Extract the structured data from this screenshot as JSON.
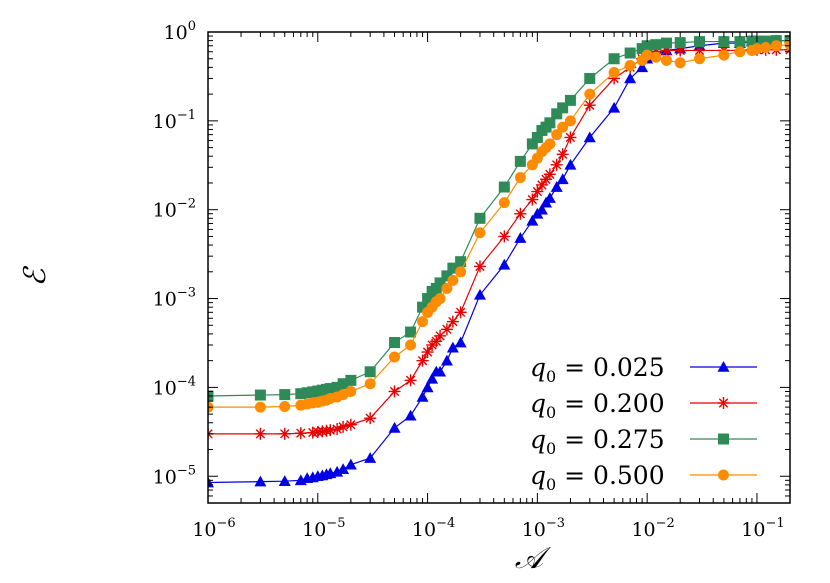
{
  "chart_data": {
    "type": "scatter",
    "title": "",
    "xlabel": "𝒜",
    "ylabel": "ℰ",
    "x_scale": "log",
    "y_scale": "log",
    "xlim": [
      1e-06,
      0.2
    ],
    "ylim": [
      5e-06,
      1
    ],
    "grid": false,
    "legend_position": "bottom-right",
    "x_ticks": [
      {
        "base": "10",
        "exp": "−6",
        "value": 1e-06
      },
      {
        "base": "10",
        "exp": "−5",
        "value": 1e-05
      },
      {
        "base": "10",
        "exp": "−4",
        "value": 0.0001
      },
      {
        "base": "10",
        "exp": "−3",
        "value": 0.001
      },
      {
        "base": "10",
        "exp": "−2",
        "value": 0.01
      },
      {
        "base": "10",
        "exp": "−1",
        "value": 0.1
      }
    ],
    "y_ticks": [
      {
        "base": "10",
        "exp": "0",
        "value": 1
      },
      {
        "base": "10",
        "exp": "−1",
        "value": 0.1
      },
      {
        "base": "10",
        "exp": "−2",
        "value": 0.01
      },
      {
        "base": "10",
        "exp": "−3",
        "value": 0.001
      },
      {
        "base": "10",
        "exp": "−4",
        "value": 0.0001
      },
      {
        "base": "10",
        "exp": "−5",
        "value": 1e-05
      }
    ],
    "series": [
      {
        "name_var": "q",
        "name_sub": "0",
        "name_value": " = 0.025",
        "color": "#0000e6",
        "marker": "triangle",
        "points": [
          [
            1e-06,
            8.5e-06
          ],
          [
            3e-06,
            8.7e-06
          ],
          [
            5e-06,
            8.8e-06
          ],
          [
            7e-06,
            9e-06
          ],
          [
            8e-06,
            9.5e-06
          ],
          [
            9e-06,
            9.7e-06
          ],
          [
            1e-05,
            1e-05
          ],
          [
            1.1e-05,
            1.02e-05
          ],
          [
            1.2e-05,
            1.05e-05
          ],
          [
            1.3e-05,
            1.08e-05
          ],
          [
            1.5e-05,
            1.12e-05
          ],
          [
            1.7e-05,
            1.2e-05
          ],
          [
            2e-05,
            1.35e-05
          ],
          [
            3e-05,
            1.6e-05
          ],
          [
            5e-05,
            3.5e-05
          ],
          [
            7e-05,
            4.8e-05
          ],
          [
            9e-05,
            7.8e-05
          ],
          [
            0.0001,
            0.0001
          ],
          [
            0.00011,
            0.000125
          ],
          [
            0.00012,
            0.00015
          ],
          [
            0.00013,
            0.00015
          ],
          [
            0.00015,
            0.0002
          ],
          [
            0.00017,
            0.00028
          ],
          [
            0.0002,
            0.00032
          ],
          [
            0.0003,
            0.0011
          ],
          [
            0.0005,
            0.0024
          ],
          [
            0.0007,
            0.0048
          ],
          [
            0.0009,
            0.0075
          ],
          [
            0.001,
            0.009
          ],
          [
            0.0011,
            0.01
          ],
          [
            0.0012,
            0.012
          ],
          [
            0.0013,
            0.0135
          ],
          [
            0.0015,
            0.018
          ],
          [
            0.0017,
            0.022
          ],
          [
            0.002,
            0.032
          ],
          [
            0.003,
            0.065
          ],
          [
            0.005,
            0.14
          ],
          [
            0.007,
            0.3
          ],
          [
            0.009,
            0.4
          ],
          [
            0.01,
            0.5
          ],
          [
            0.012,
            0.55
          ],
          [
            0.015,
            0.62
          ],
          [
            0.02,
            0.65
          ],
          [
            0.03,
            0.7
          ],
          [
            0.05,
            0.75
          ],
          [
            0.07,
            0.75
          ],
          [
            0.09,
            0.78
          ],
          [
            0.1,
            0.78
          ],
          [
            0.12,
            0.78
          ],
          [
            0.15,
            0.8
          ],
          [
            0.2,
            0.8
          ]
        ]
      },
      {
        "name_var": "q",
        "name_sub": "0",
        "name_value": " = 0.200",
        "color": "#e60000",
        "marker": "asterisk",
        "points": [
          [
            1e-06,
            3e-05
          ],
          [
            3e-06,
            3e-05
          ],
          [
            5e-06,
            3e-05
          ],
          [
            7e-06,
            3.05e-05
          ],
          [
            9e-06,
            3.1e-05
          ],
          [
            1e-05,
            3.15e-05
          ],
          [
            1.1e-05,
            3.2e-05
          ],
          [
            1.2e-05,
            3.25e-05
          ],
          [
            1.3e-05,
            3.3e-05
          ],
          [
            1.5e-05,
            3.4e-05
          ],
          [
            1.7e-05,
            3.6e-05
          ],
          [
            2e-05,
            3.8e-05
          ],
          [
            3e-05,
            4.5e-05
          ],
          [
            5e-05,
            9e-05
          ],
          [
            7e-05,
            0.00012
          ],
          [
            9e-05,
            0.0002
          ],
          [
            0.0001,
            0.00025
          ],
          [
            0.00011,
            0.0003
          ],
          [
            0.00012,
            0.00033
          ],
          [
            0.00013,
            0.00038
          ],
          [
            0.00015,
            0.00045
          ],
          [
            0.00017,
            0.00055
          ],
          [
            0.0002,
            0.0007
          ],
          [
            0.0003,
            0.0023
          ],
          [
            0.0005,
            0.005
          ],
          [
            0.0007,
            0.009
          ],
          [
            0.0009,
            0.013
          ],
          [
            0.001,
            0.016
          ],
          [
            0.0011,
            0.019
          ],
          [
            0.0012,
            0.022
          ],
          [
            0.0013,
            0.025
          ],
          [
            0.0015,
            0.032
          ],
          [
            0.0017,
            0.042
          ],
          [
            0.002,
            0.065
          ],
          [
            0.003,
            0.15
          ],
          [
            0.005,
            0.3
          ],
          [
            0.007,
            0.4
          ],
          [
            0.009,
            0.5
          ],
          [
            0.01,
            0.55
          ],
          [
            0.012,
            0.6
          ],
          [
            0.015,
            0.62
          ],
          [
            0.02,
            0.62
          ],
          [
            0.03,
            0.62
          ],
          [
            0.05,
            0.62
          ],
          [
            0.07,
            0.62
          ],
          [
            0.09,
            0.63
          ],
          [
            0.1,
            0.63
          ],
          [
            0.12,
            0.63
          ],
          [
            0.15,
            0.63
          ],
          [
            0.2,
            0.63
          ]
        ]
      },
      {
        "name_var": "q",
        "name_sub": "0",
        "name_value": " = 0.275",
        "color": "#2e8b57",
        "marker": "square",
        "points": [
          [
            1e-06,
            8e-05
          ],
          [
            3e-06,
            8.2e-05
          ],
          [
            5e-06,
            8.3e-05
          ],
          [
            7e-06,
            8.5e-05
          ],
          [
            8e-06,
            8.7e-05
          ],
          [
            9e-06,
            8.9e-05
          ],
          [
            1e-05,
            9.1e-05
          ],
          [
            1.1e-05,
            9.3e-05
          ],
          [
            1.2e-05,
            9.5e-05
          ],
          [
            1.3e-05,
            9.7e-05
          ],
          [
            1.5e-05,
            0.0001
          ],
          [
            1.7e-05,
            0.00011
          ],
          [
            2e-05,
            0.00012
          ],
          [
            3e-05,
            0.00015
          ],
          [
            5e-05,
            0.00032
          ],
          [
            7e-05,
            0.00042
          ],
          [
            9e-05,
            0.0008
          ],
          [
            0.0001,
            0.001
          ],
          [
            0.00011,
            0.0012
          ],
          [
            0.00012,
            0.0013
          ],
          [
            0.00013,
            0.0015
          ],
          [
            0.00015,
            0.0018
          ],
          [
            0.00017,
            0.0022
          ],
          [
            0.0002,
            0.0026
          ],
          [
            0.0003,
            0.008
          ],
          [
            0.0005,
            0.018
          ],
          [
            0.0007,
            0.035
          ],
          [
            0.0009,
            0.055
          ],
          [
            0.001,
            0.065
          ],
          [
            0.0011,
            0.078
          ],
          [
            0.0012,
            0.085
          ],
          [
            0.0013,
            0.095
          ],
          [
            0.0015,
            0.12
          ],
          [
            0.0017,
            0.14
          ],
          [
            0.002,
            0.17
          ],
          [
            0.003,
            0.3
          ],
          [
            0.005,
            0.5
          ],
          [
            0.007,
            0.58
          ],
          [
            0.009,
            0.65
          ],
          [
            0.01,
            0.7
          ],
          [
            0.012,
            0.72
          ],
          [
            0.015,
            0.75
          ],
          [
            0.02,
            0.76
          ],
          [
            0.03,
            0.78
          ],
          [
            0.05,
            0.78
          ],
          [
            0.07,
            0.78
          ],
          [
            0.09,
            0.79
          ],
          [
            0.1,
            0.79
          ],
          [
            0.12,
            0.79
          ],
          [
            0.15,
            0.8
          ],
          [
            0.2,
            0.8
          ]
        ]
      },
      {
        "name_var": "q",
        "name_sub": "0",
        "name_value": " = 0.500",
        "color": "#ff8c00",
        "marker": "circle",
        "points": [
          [
            1e-06,
            6e-05
          ],
          [
            3e-06,
            6e-05
          ],
          [
            5e-06,
            6.1e-05
          ],
          [
            7e-06,
            6.3e-05
          ],
          [
            8e-06,
            6.5e-05
          ],
          [
            9e-06,
            6.7e-05
          ],
          [
            1e-05,
            6.8e-05
          ],
          [
            1.1e-05,
            7e-05
          ],
          [
            1.2e-05,
            7.2e-05
          ],
          [
            1.3e-05,
            7.5e-05
          ],
          [
            1.5e-05,
            7.8e-05
          ],
          [
            1.7e-05,
            8.3e-05
          ],
          [
            2e-05,
            9e-05
          ],
          [
            3e-05,
            0.00011
          ],
          [
            5e-05,
            0.00022
          ],
          [
            7e-05,
            0.0003
          ],
          [
            9e-05,
            0.00055
          ],
          [
            0.0001,
            0.0007
          ],
          [
            0.00011,
            0.0008
          ],
          [
            0.00012,
            0.00092
          ],
          [
            0.00013,
            0.001
          ],
          [
            0.00015,
            0.0013
          ],
          [
            0.00017,
            0.0016
          ],
          [
            0.0002,
            0.002
          ],
          [
            0.0003,
            0.0055
          ],
          [
            0.0005,
            0.012
          ],
          [
            0.0007,
            0.023
          ],
          [
            0.0009,
            0.032
          ],
          [
            0.001,
            0.038
          ],
          [
            0.0011,
            0.045
          ],
          [
            0.0012,
            0.05
          ],
          [
            0.0013,
            0.055
          ],
          [
            0.0015,
            0.07
          ],
          [
            0.0017,
            0.085
          ],
          [
            0.002,
            0.1
          ],
          [
            0.003,
            0.2
          ],
          [
            0.005,
            0.35
          ],
          [
            0.007,
            0.42
          ],
          [
            0.009,
            0.48
          ],
          [
            0.01,
            0.55
          ],
          [
            0.012,
            0.52
          ],
          [
            0.015,
            0.48
          ],
          [
            0.02,
            0.45
          ],
          [
            0.03,
            0.5
          ],
          [
            0.05,
            0.55
          ],
          [
            0.07,
            0.6
          ],
          [
            0.09,
            0.62
          ],
          [
            0.1,
            0.65
          ],
          [
            0.12,
            0.67
          ],
          [
            0.15,
            0.7
          ],
          [
            0.2,
            0.72
          ]
        ]
      }
    ]
  }
}
